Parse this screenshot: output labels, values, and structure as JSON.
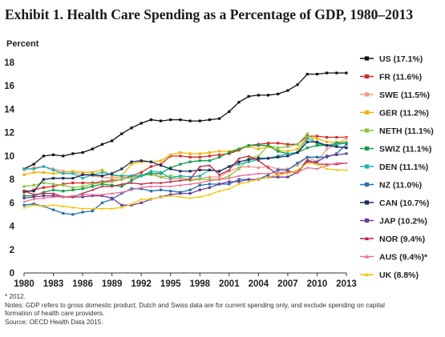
{
  "chart_data": {
    "type": "line",
    "title": "Exhibit 1. Health Care Spending as a Percentage of GDP, 1980–2013",
    "ylabel": "Percent",
    "xlabel": "",
    "ylim": [
      0,
      18
    ],
    "y_ticks": [
      "0",
      "2",
      "4",
      "6",
      "8",
      "10",
      "12",
      "14",
      "16",
      "18"
    ],
    "x_ticks": [
      "1980",
      "1983",
      "1986",
      "1989",
      "1992",
      "1995",
      "1998",
      "2001",
      "2004",
      "2007",
      "2010",
      "2013"
    ],
    "x": [
      1980,
      1981,
      1982,
      1983,
      1984,
      1985,
      1986,
      1987,
      1988,
      1989,
      1990,
      1991,
      1992,
      1993,
      1994,
      1995,
      1996,
      1997,
      1998,
      1999,
      2000,
      2001,
      2002,
      2003,
      2004,
      2005,
      2006,
      2007,
      2008,
      2009,
      2010,
      2011,
      2012,
      2013
    ],
    "legend_position": "right",
    "grid": false,
    "series": [
      {
        "name": "US (17.1%)",
        "color": "#111111",
        "marker": "square",
        "values": [
          8.9,
          9.3,
          10.0,
          10.1,
          10.0,
          10.2,
          10.3,
          10.6,
          11.0,
          11.3,
          11.9,
          12.4,
          12.8,
          13.1,
          13.0,
          13.1,
          13.1,
          13.0,
          13.0,
          13.1,
          13.2,
          13.8,
          14.6,
          15.1,
          15.2,
          15.2,
          15.3,
          15.6,
          16.1,
          17.0,
          17.0,
          17.1,
          17.1,
          17.1
        ]
      },
      {
        "name": "FR (11.6%)",
        "color": "#d62b2b",
        "marker": "square",
        "values": [
          6.9,
          7.1,
          7.3,
          7.4,
          7.6,
          7.7,
          7.7,
          7.7,
          7.8,
          7.9,
          8.0,
          8.3,
          8.6,
          9.1,
          9.3,
          10.0,
          10.0,
          9.9,
          9.9,
          10.0,
          10.1,
          10.2,
          10.5,
          10.9,
          11.0,
          11.1,
          11.1,
          11.0,
          11.0,
          11.7,
          11.7,
          11.6,
          11.6,
          11.6
        ]
      },
      {
        "name": "SWE (11.5%)",
        "color": "#f09a8a",
        "marker": "square",
        "values": [
          8.8,
          9.0,
          9.1,
          8.9,
          8.7,
          8.6,
          8.4,
          8.3,
          8.2,
          8.1,
          8.2,
          8.1,
          8.3,
          8.6,
          8.2,
          8.0,
          8.1,
          8.0,
          8.1,
          8.2,
          8.2,
          8.7,
          9.0,
          9.1,
          9.0,
          9.1,
          8.9,
          8.9,
          9.2,
          9.9,
          9.5,
          10.6,
          11.0,
          11.5
        ]
      },
      {
        "name": "GER (11.2%)",
        "color": "#f3b400",
        "marker": "square",
        "values": [
          8.4,
          8.6,
          8.6,
          8.5,
          8.6,
          8.7,
          8.6,
          8.6,
          8.8,
          8.3,
          8.3,
          9.3,
          9.5,
          9.5,
          9.6,
          10.1,
          10.3,
          10.2,
          10.2,
          10.3,
          10.4,
          10.4,
          10.6,
          10.8,
          10.6,
          10.8,
          10.5,
          10.4,
          10.6,
          11.6,
          11.5,
          11.2,
          11.2,
          11.2
        ]
      },
      {
        "name": "NETH (11.1%)",
        "color": "#8cc63f",
        "marker": "square",
        "values": [
          7.4,
          7.5,
          7.7,
          7.6,
          7.5,
          7.3,
          7.4,
          7.6,
          7.7,
          7.8,
          8.0,
          8.2,
          8.4,
          8.4,
          8.2,
          8.3,
          8.2,
          7.9,
          8.0,
          8.0,
          8.0,
          8.3,
          8.9,
          9.8,
          10.0,
          10.9,
          10.7,
          10.8,
          11.0,
          11.9,
          11.0,
          10.9,
          11.1,
          11.1
        ]
      },
      {
        "name": "SWIZ (11.1%)",
        "color": "#129d4b",
        "marker": "square",
        "values": [
          6.6,
          6.6,
          6.9,
          7.1,
          7.0,
          7.1,
          7.2,
          7.4,
          7.6,
          7.5,
          7.4,
          7.9,
          8.3,
          8.5,
          8.5,
          9.0,
          9.3,
          9.5,
          9.6,
          9.6,
          9.9,
          10.3,
          10.6,
          10.9,
          10.9,
          10.9,
          10.4,
          10.2,
          10.3,
          10.7,
          10.9,
          10.9,
          11.1,
          11.1
        ]
      },
      {
        "name": "DEN (11.1%)",
        "color": "#1ab3b3",
        "marker": "square",
        "values": [
          8.9,
          8.9,
          9.1,
          8.8,
          8.5,
          8.5,
          8.1,
          8.4,
          8.6,
          8.4,
          8.3,
          8.3,
          8.3,
          8.7,
          8.6,
          8.1,
          8.3,
          8.2,
          8.3,
          8.8,
          8.7,
          9.1,
          9.3,
          9.5,
          9.7,
          9.8,
          10.0,
          10.2,
          10.3,
          11.5,
          11.1,
          10.9,
          11.0,
          11.1
        ]
      },
      {
        "name": "NZ (11.0%)",
        "color": "#2470b3",
        "marker": "square",
        "values": [
          5.8,
          5.9,
          5.7,
          5.4,
          5.1,
          5.0,
          5.2,
          5.3,
          6.0,
          6.3,
          6.8,
          7.2,
          7.2,
          7.0,
          7.1,
          7.0,
          6.9,
          7.1,
          7.5,
          7.6,
          7.6,
          7.6,
          8.0,
          8.0,
          8.0,
          8.4,
          8.8,
          8.8,
          9.4,
          9.9,
          9.9,
          9.9,
          10.2,
          11.0
        ]
      },
      {
        "name": "CAN (10.7%)",
        "color": "#1d2d5c",
        "marker": "square",
        "values": [
          7.0,
          7.0,
          8.0,
          8.1,
          8.1,
          8.1,
          8.4,
          8.4,
          8.3,
          8.5,
          8.9,
          9.5,
          9.6,
          9.5,
          9.2,
          8.9,
          8.7,
          8.7,
          8.8,
          8.8,
          8.7,
          9.1,
          9.5,
          9.7,
          9.8,
          9.8,
          9.9,
          10.0,
          10.3,
          11.2,
          11.2,
          10.9,
          10.8,
          10.7
        ]
      },
      {
        "name": "JAP (10.2%)",
        "color": "#6a3d9a",
        "marker": "square",
        "values": [
          6.4,
          6.5,
          6.6,
          6.6,
          6.5,
          6.5,
          6.5,
          6.6,
          6.6,
          6.4,
          5.8,
          5.8,
          6.0,
          6.3,
          6.5,
          6.7,
          6.8,
          6.8,
          7.1,
          7.3,
          7.6,
          7.8,
          7.8,
          8.0,
          8.0,
          8.2,
          8.2,
          8.2,
          8.6,
          9.5,
          9.5,
          10.0,
          10.1,
          10.2
        ]
      },
      {
        "name": "NOR (9.4%)",
        "color": "#c0233c",
        "marker": "triangle",
        "values": [
          7.0,
          6.7,
          6.8,
          6.8,
          6.5,
          6.5,
          6.8,
          7.1,
          7.4,
          7.4,
          7.6,
          7.7,
          7.6,
          7.7,
          7.7,
          7.8,
          7.9,
          8.0,
          9.1,
          9.2,
          8.4,
          8.8,
          9.8,
          10.0,
          9.6,
          9.0,
          8.4,
          8.7,
          8.6,
          9.7,
          9.3,
          9.3,
          9.3,
          9.4
        ]
      },
      {
        "name": "AUS (9.4%)*",
        "color": "#ec6e94",
        "marker": "triangle",
        "values": [
          6.1,
          6.3,
          6.4,
          6.5,
          6.5,
          6.6,
          6.7,
          6.7,
          6.7,
          6.8,
          6.9,
          7.1,
          7.3,
          7.4,
          7.4,
          7.4,
          7.5,
          7.6,
          7.7,
          7.9,
          8.0,
          8.1,
          8.3,
          8.4,
          8.5,
          8.5,
          8.6,
          8.6,
          8.6,
          9.0,
          8.9,
          9.2,
          9.4,
          9.4
        ]
      },
      {
        "name": "UK (8.8%)",
        "color": "#f6c500",
        "marker": "triangle",
        "values": [
          5.6,
          5.8,
          5.7,
          5.8,
          5.7,
          5.6,
          5.5,
          5.5,
          5.5,
          5.5,
          5.6,
          5.9,
          6.3,
          6.3,
          6.5,
          6.6,
          6.5,
          6.4,
          6.5,
          6.7,
          7.0,
          7.2,
          7.6,
          7.8,
          8.0,
          8.2,
          8.4,
          8.5,
          8.8,
          9.4,
          9.3,
          8.9,
          8.8,
          8.8
        ]
      }
    ]
  },
  "notes": {
    "footnote": "* 2012.",
    "notes_line1": "Notes: GDP refers to gross domestic product. Dutch and Swiss data are for current spending only, and exclude spending on capital",
    "notes_line2": "formation of health care providers.",
    "source": "Source: OECD Health Data 2015."
  }
}
